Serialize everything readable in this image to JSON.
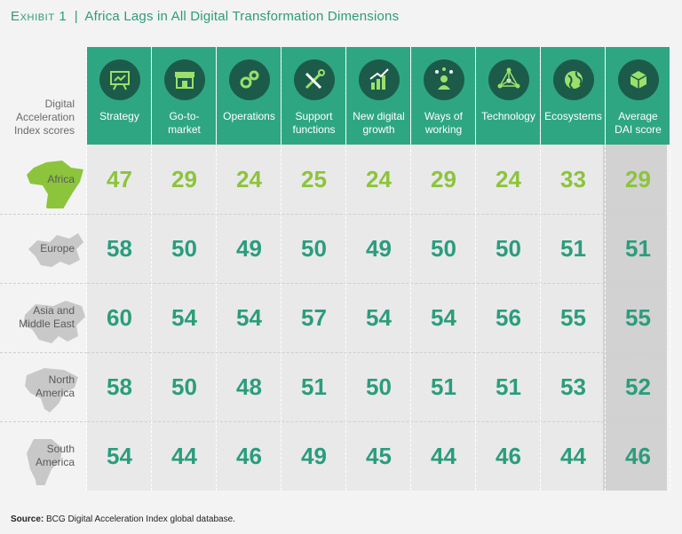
{
  "title": {
    "exhibit": "Exhibit 1",
    "separator": "|",
    "text": "Africa Lags in All Digital Transformation Dimensions"
  },
  "row_header_label": [
    "Digital",
    "Acceleration",
    "Index scores"
  ],
  "source": {
    "label": "Source:",
    "text": "BCG Digital Acceleration Index global database."
  },
  "colors": {
    "header": "#2fa682",
    "icon_bg": "#1c5b4a",
    "value_teal": "#2a9d7c",
    "value_africa": "#8cc43c",
    "avg_bg": "#d2d2d2"
  },
  "columns": [
    {
      "label": [
        "Strategy"
      ],
      "icon": "strategy-board-icon"
    },
    {
      "label": [
        "Go-to-",
        "market"
      ],
      "icon": "storefront-icon"
    },
    {
      "label": [
        "Operations"
      ],
      "icon": "gears-icon"
    },
    {
      "label": [
        "Support",
        "functions"
      ],
      "icon": "tools-icon"
    },
    {
      "label": [
        "New digital",
        "growth"
      ],
      "icon": "growth-chart-icon"
    },
    {
      "label": [
        "Ways of",
        "working"
      ],
      "icon": "person-ideas-icon"
    },
    {
      "label": [
        "Technology"
      ],
      "icon": "network-icon"
    },
    {
      "label": [
        "Ecosystems"
      ],
      "icon": "globe-icon"
    },
    {
      "label": [
        "Average",
        "DAI score"
      ],
      "icon": "digital-cube-icon"
    }
  ],
  "chart_data": {
    "type": "table",
    "title": "Africa Lags in All Digital Transformation Dimensions",
    "columns": [
      "Strategy",
      "Go-to-market",
      "Operations",
      "Support functions",
      "New digital growth",
      "Ways of working",
      "Technology",
      "Ecosystems",
      "Average DAI score"
    ],
    "rows": [
      {
        "region": [
          "Africa"
        ],
        "map_icon": "africa-map-icon",
        "values": [
          47,
          29,
          24,
          25,
          24,
          29,
          24,
          33,
          29
        ]
      },
      {
        "region": [
          "Europe"
        ],
        "map_icon": "europe-map-icon",
        "values": [
          58,
          50,
          49,
          50,
          49,
          50,
          50,
          51,
          51
        ]
      },
      {
        "region": [
          "Asia and",
          "Middle East"
        ],
        "map_icon": "asia-map-icon",
        "values": [
          60,
          54,
          54,
          57,
          54,
          54,
          56,
          55,
          55
        ]
      },
      {
        "region": [
          "North",
          "America"
        ],
        "map_icon": "north-america-map-icon",
        "values": [
          58,
          50,
          48,
          51,
          50,
          51,
          51,
          53,
          52
        ]
      },
      {
        "region": [
          "South",
          "America"
        ],
        "map_icon": "south-america-map-icon",
        "values": [
          54,
          44,
          46,
          49,
          45,
          44,
          46,
          44,
          46
        ]
      }
    ]
  }
}
